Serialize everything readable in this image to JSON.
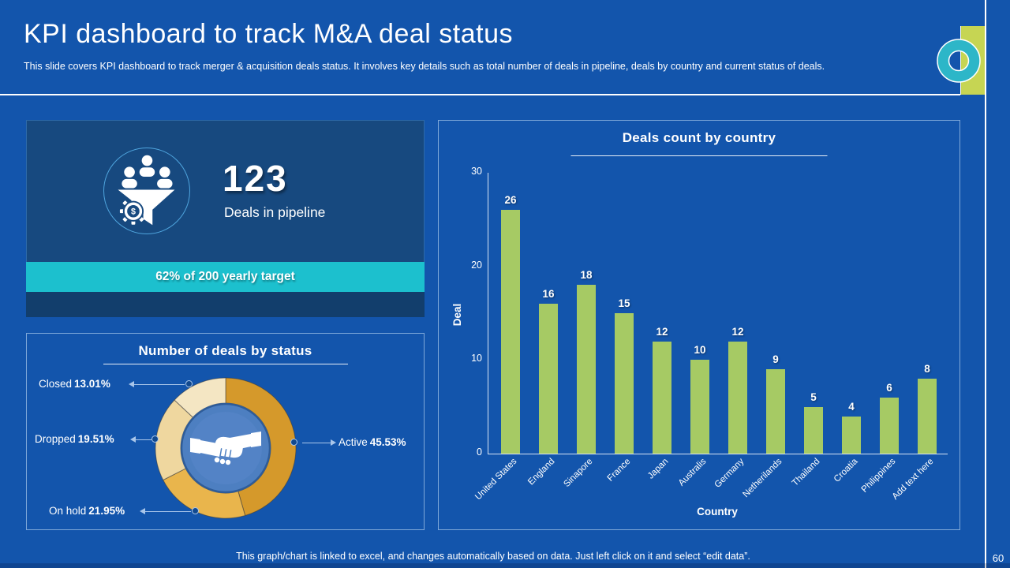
{
  "slide": {
    "title": "KPI dashboard to track M&A deal status",
    "subtitle": "This slide covers KPI dashboard to track merger & acquisition deals status. It involves key details such as total number of deals in pipeline, deals by country and current status of deals.",
    "footer_note": "This graph/chart is linked to excel, and changes automatically based on data. Just left click on it and select “edit data”.",
    "page_number": "60"
  },
  "kpi_card": {
    "value": "123",
    "label": "Deals in pipeline",
    "target_banner": "62% of 200 yearly target",
    "icon": "sales-funnel-icon"
  },
  "chart_data": [
    {
      "type": "pie",
      "subtype": "donut",
      "title": "Number of deals by status",
      "center_icon": "handshake-icon",
      "legend_position": "callouts",
      "segments": [
        {
          "label": "Active",
          "value": 45.53,
          "display": "45.53%",
          "color": "#D5992B"
        },
        {
          "label": "On hold",
          "value": 21.95,
          "display": "21.95%",
          "color": "#E9B54C"
        },
        {
          "label": "Dropped",
          "value": 19.51,
          "display": "19.51%",
          "color": "#EFD79F"
        },
        {
          "label": "Closed",
          "value": 13.01,
          "display": "13.01%",
          "color": "#F4E6C3"
        }
      ]
    },
    {
      "type": "bar",
      "title": "Deals count by country",
      "categories": [
        "United States",
        "England",
        "Sinapore",
        "France",
        "Japan",
        "Australis",
        "Germany",
        "Netherilands",
        "Thailand",
        "Croatia",
        "Philippines",
        "Add text here"
      ],
      "values": [
        26,
        16,
        18,
        15,
        12,
        10,
        12,
        9,
        5,
        4,
        6,
        8
      ],
      "xlabel": "Country",
      "ylabel": "Deal",
      "ylim": [
        0,
        30
      ],
      "yticks": [
        0,
        10,
        20,
        30
      ],
      "grid": false,
      "legend": false,
      "bar_color": "#A6CA64"
    }
  ],
  "colors": {
    "background": "#1355AC",
    "panel_dark": "#17497F",
    "panel_bottom": "#123E6C",
    "banner_teal": "#1CC0CE",
    "bar_green": "#A6CA64",
    "decoration_yellow": "#C6D553",
    "decoration_teal": "#2DB6C8"
  }
}
